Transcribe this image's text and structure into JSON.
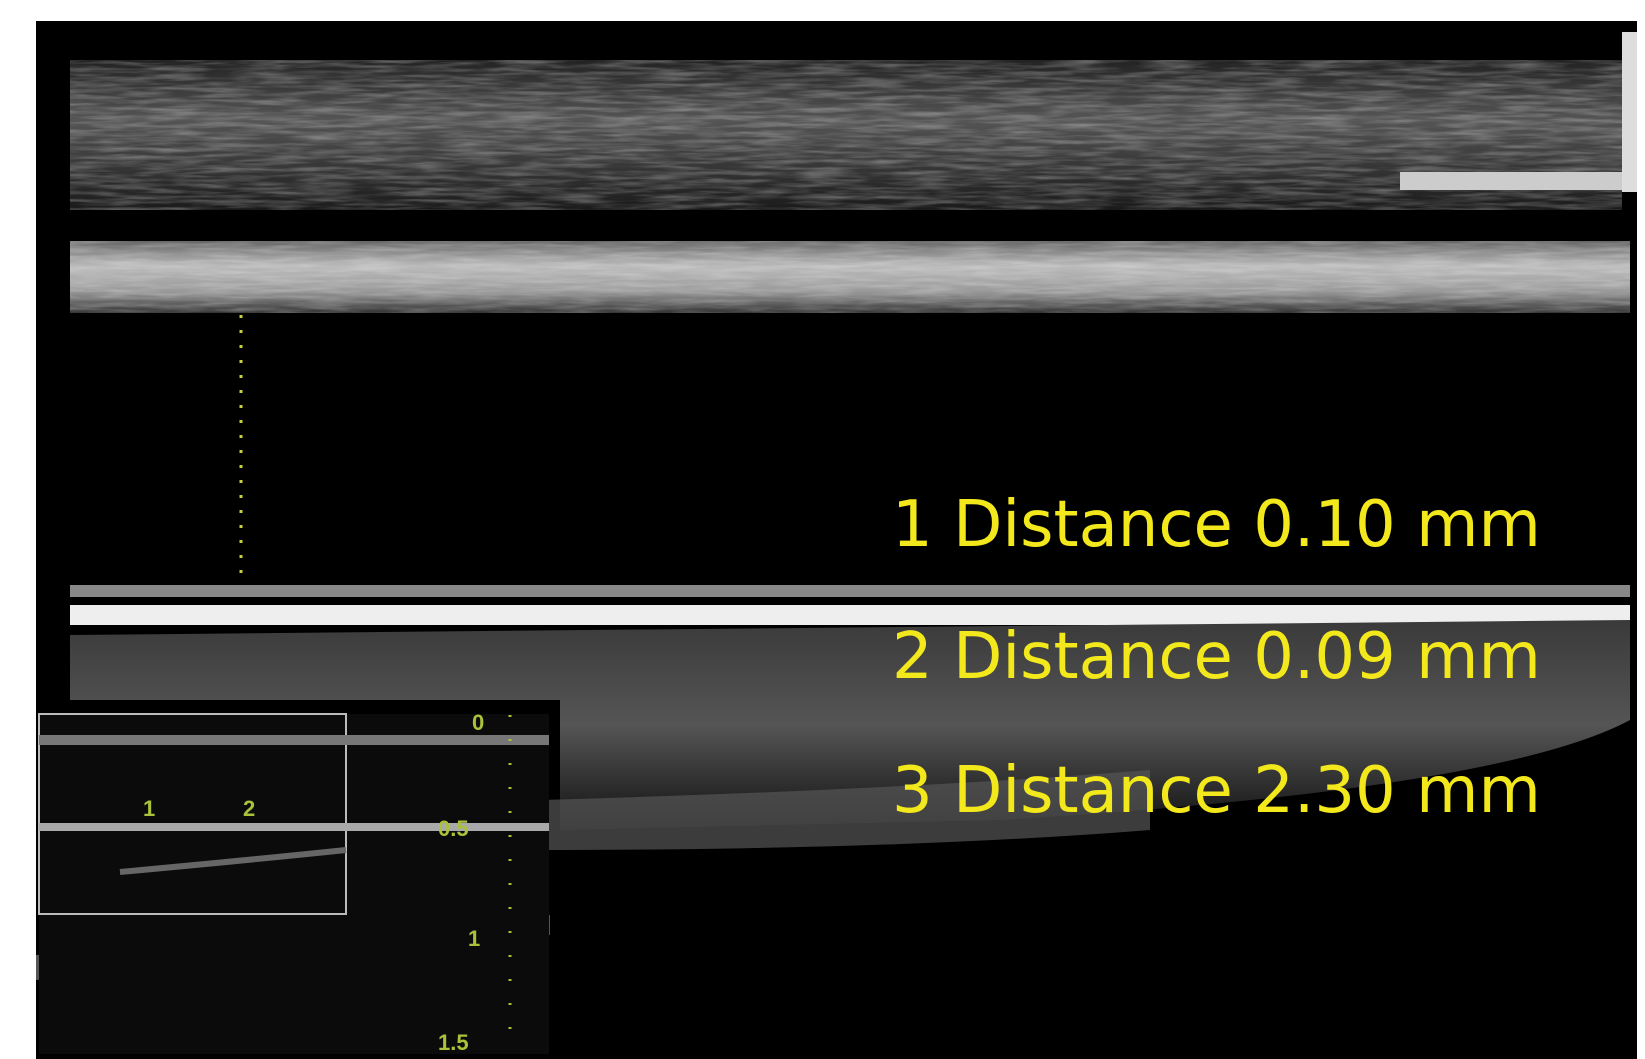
{
  "measurements": [
    "1 Distance 0.10 mm",
    "2 Distance 0.09 mm",
    "3 Distance 2.30 mm"
  ],
  "depth_scale": [
    "0",
    "0.5",
    "1",
    "1.5"
  ],
  "inset_markers": [
    "1",
    "2"
  ]
}
